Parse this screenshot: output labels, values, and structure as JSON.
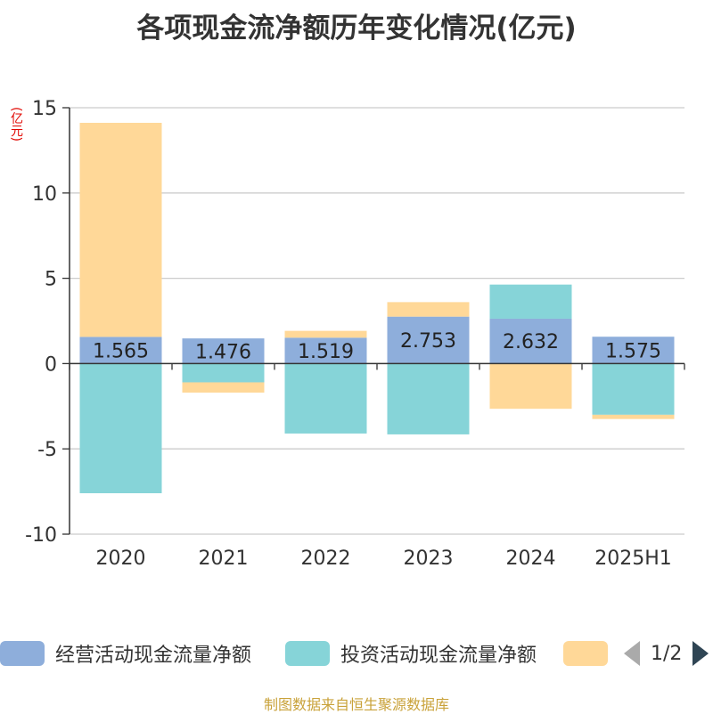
{
  "title": "各项现金流净额历年变化情况(亿元)",
  "unit_label": "(亿元)",
  "source": "制图数据来自恒生聚源数据库",
  "legend": {
    "items": [
      {
        "label": "经营活动现金流量净额",
        "color": "#8eaedb"
      },
      {
        "label": "投资活动现金流量净额",
        "color": "#86d4d8"
      },
      {
        "label": "",
        "color": "#ffd898"
      }
    ],
    "page_text": "1/2"
  },
  "chart_data": {
    "type": "bar",
    "stacked": true,
    "categories": [
      "2020",
      "2021",
      "2022",
      "2023",
      "2024",
      "2025H1"
    ],
    "ylim": [
      -10,
      15
    ],
    "yticks": [
      "15",
      "10",
      "5",
      "0",
      "-5",
      "-10"
    ],
    "grid": true,
    "series": [
      {
        "name": "经营活动现金流量净额",
        "color": "#8eaedb",
        "values": [
          1.565,
          1.476,
          1.519,
          2.753,
          2.632,
          1.575
        ],
        "labels": [
          "1.565",
          "1.476",
          "1.519",
          "2.753",
          "2.632",
          "1.575"
        ]
      },
      {
        "name": "投资活动现金流量净额",
        "color": "#86d4d8",
        "values": [
          -7.6,
          -1.1,
          -4.1,
          -4.15,
          2.0,
          -3.0
        ]
      },
      {
        "color": "#ffd898",
        "values": [
          12.55,
          -0.6,
          0.4,
          0.85,
          -2.65,
          -0.25
        ]
      }
    ]
  }
}
